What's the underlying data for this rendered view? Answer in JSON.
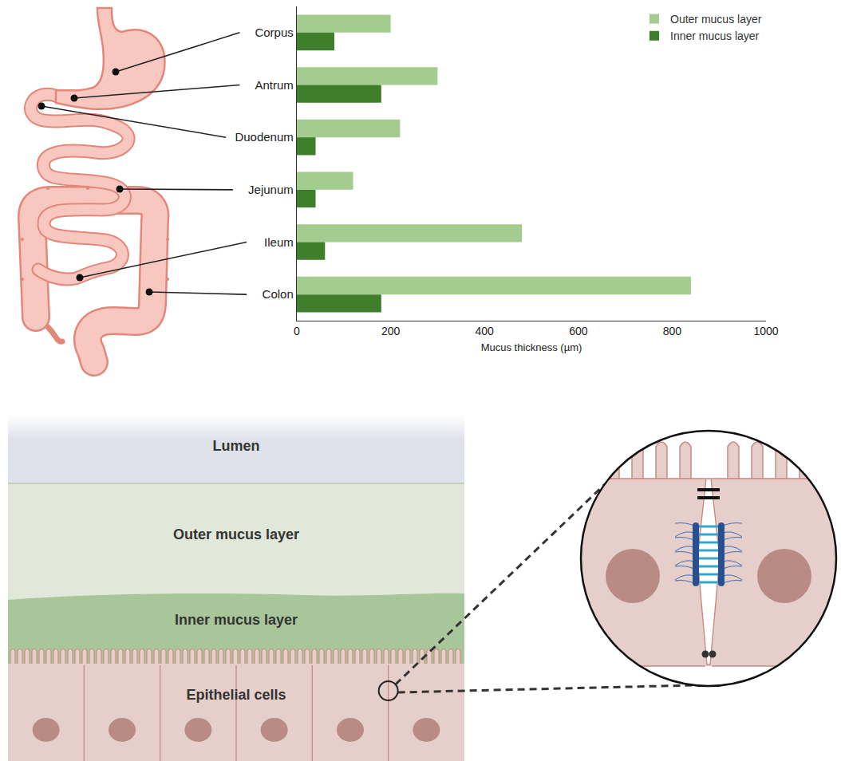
{
  "chart_data": {
    "type": "bar",
    "orientation": "horizontal",
    "categories": [
      "Corpus",
      "Antrum",
      "Duodenum",
      "Jejunum",
      "Ileum",
      "Colon"
    ],
    "series": [
      {
        "name": "Outer mucus layer",
        "color": "#a3cc8e",
        "values": [
          200,
          300,
          220,
          120,
          480,
          840
        ]
      },
      {
        "name": "Inner mucus layer",
        "color": "#3f7f2c",
        "values": [
          80,
          180,
          40,
          40,
          60,
          180
        ]
      }
    ],
    "x_label": "Mucus thickness (µm)",
    "xlim": [
      0,
      1000
    ],
    "xticks": [
      0,
      200,
      400,
      600,
      800,
      1000
    ],
    "grid": false,
    "legend": "top right"
  },
  "diagram": {
    "layers": [
      "Lumen",
      "Outer mucus layer",
      "Inner mucus layer",
      "Epithelial cells"
    ]
  }
}
